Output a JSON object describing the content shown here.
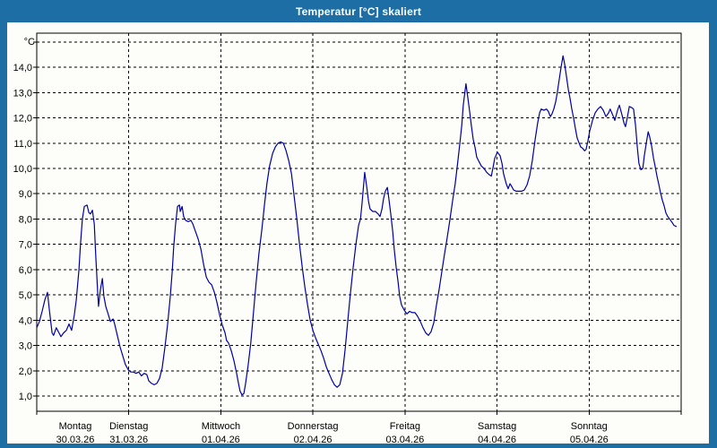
{
  "window": {
    "title": "Temperatur [°C] skaliert",
    "frame_color": "#1C6EA5",
    "titlebar_text_color": "#FFFFFF",
    "panel_background": "#FDFEF9"
  },
  "chart_data": {
    "type": "line",
    "title": "Temperatur [°C] skaliert",
    "unit_label": "°C",
    "grid": {
      "style": "dashed",
      "color": "#000000",
      "horizontal": true,
      "vertical": true
    },
    "legend": "none",
    "x_axis": {
      "kind": "time",
      "range_hours": [
        0,
        168
      ],
      "day_ticks": [
        {
          "name": "Montag",
          "date": "30.03.26",
          "start_hour": 0
        },
        {
          "name": "Dienstag",
          "date": "31.03.26",
          "start_hour": 24
        },
        {
          "name": "Mittwoch",
          "date": "01.04.26",
          "start_hour": 48
        },
        {
          "name": "Donnerstag",
          "date": "02.04.26",
          "start_hour": 72
        },
        {
          "name": "Freitag",
          "date": "03.04.26",
          "start_hour": 96
        },
        {
          "name": "Samstag",
          "date": "04.04.26",
          "start_hour": 120
        },
        {
          "name": "Sonntag",
          "date": "05.04.26",
          "start_hour": 144
        }
      ]
    },
    "y_axis": {
      "range": [
        0.4,
        15.35
      ],
      "gridline_values": [
        1,
        2,
        3,
        4,
        5,
        6,
        7,
        8,
        9,
        10,
        11,
        12,
        13,
        14,
        15
      ],
      "tick_labels": [
        {
          "value": 1,
          "label": "1,0"
        },
        {
          "value": 2,
          "label": "2,0"
        },
        {
          "value": 3,
          "label": "3,0"
        },
        {
          "value": 4,
          "label": "4,0"
        },
        {
          "value": 5,
          "label": "5,0"
        },
        {
          "value": 6,
          "label": "6,0"
        },
        {
          "value": 7,
          "label": "7,0"
        },
        {
          "value": 8,
          "label": "8,0"
        },
        {
          "value": 9,
          "label": "9,0"
        },
        {
          "value": 10,
          "label": "10,0"
        },
        {
          "value": 11,
          "label": "11,0"
        },
        {
          "value": 12,
          "label": "12,0"
        },
        {
          "value": 13,
          "label": "13,0"
        },
        {
          "value": 14,
          "label": "14,0"
        }
      ]
    },
    "series": [
      {
        "name": "Temperatur",
        "unit": "°C",
        "color": "#0000A0",
        "points": [
          [
            0,
            3.7
          ],
          [
            0.7,
            3.95
          ],
          [
            1.4,
            4.35
          ],
          [
            2.1,
            4.8
          ],
          [
            2.8,
            5.1
          ],
          [
            3.3,
            4.4
          ],
          [
            4,
            3.5
          ],
          [
            4.4,
            3.4
          ],
          [
            5.1,
            3.7
          ],
          [
            5.8,
            3.5
          ],
          [
            6.3,
            3.35
          ],
          [
            7,
            3.5
          ],
          [
            7.7,
            3.6
          ],
          [
            8.4,
            3.85
          ],
          [
            9.1,
            3.6
          ],
          [
            9.8,
            4.2
          ],
          [
            10.3,
            4.8
          ],
          [
            11,
            6
          ],
          [
            11.4,
            7
          ],
          [
            11.9,
            8
          ],
          [
            12.4,
            8.5
          ],
          [
            13.1,
            8.55
          ],
          [
            13.6,
            8.25
          ],
          [
            14,
            8.2
          ],
          [
            14.5,
            8.35
          ],
          [
            15,
            7.8
          ],
          [
            15.4,
            6.5
          ],
          [
            15.9,
            5.1
          ],
          [
            16.1,
            4.55
          ],
          [
            16.6,
            5.2
          ],
          [
            17.1,
            5.65
          ],
          [
            17.5,
            4.95
          ],
          [
            18,
            4.55
          ],
          [
            18.5,
            4.3
          ],
          [
            19.2,
            3.95
          ],
          [
            19.9,
            4.05
          ],
          [
            20.3,
            3.85
          ],
          [
            21,
            3.4
          ],
          [
            21.7,
            2.95
          ],
          [
            22.4,
            2.6
          ],
          [
            23.1,
            2.25
          ],
          [
            23.8,
            2.05
          ],
          [
            24.5,
            1.95
          ],
          [
            25.2,
            1.95
          ],
          [
            25.9,
            1.9
          ],
          [
            26.6,
            1.95
          ],
          [
            27.3,
            1.8
          ],
          [
            28,
            1.9
          ],
          [
            28.7,
            1.85
          ],
          [
            29.2,
            1.6
          ],
          [
            29.9,
            1.5
          ],
          [
            30.6,
            1.45
          ],
          [
            31.3,
            1.5
          ],
          [
            32,
            1.7
          ],
          [
            32.7,
            2.1
          ],
          [
            33.4,
            2.9
          ],
          [
            34.1,
            3.8
          ],
          [
            34.8,
            4.9
          ],
          [
            35.3,
            5.9
          ],
          [
            35.7,
            6.9
          ],
          [
            36.2,
            7.8
          ],
          [
            36.7,
            8.5
          ],
          [
            37.2,
            8.55
          ],
          [
            37.4,
            8.3
          ],
          [
            37.9,
            8.5
          ],
          [
            38.3,
            8.1
          ],
          [
            38.8,
            7.95
          ],
          [
            39.5,
            7.9
          ],
          [
            40.2,
            7.95
          ],
          [
            40.7,
            7.8
          ],
          [
            41.4,
            7.5
          ],
          [
            42.1,
            7.2
          ],
          [
            42.8,
            6.8
          ],
          [
            43.5,
            6.2
          ],
          [
            44.2,
            5.7
          ],
          [
            44.9,
            5.5
          ],
          [
            45.6,
            5.4
          ],
          [
            46.3,
            5.1
          ],
          [
            47,
            4.7
          ],
          [
            47.7,
            4.2
          ],
          [
            48.4,
            3.8
          ],
          [
            49.1,
            3.5
          ],
          [
            49.5,
            3.2
          ],
          [
            50,
            3.1
          ],
          [
            50.7,
            2.8
          ],
          [
            51.4,
            2.4
          ],
          [
            52.1,
            1.9
          ],
          [
            52.6,
            1.5
          ],
          [
            53,
            1.2
          ],
          [
            53.5,
            1.05
          ],
          [
            54,
            1.1
          ],
          [
            54.4,
            1.45
          ],
          [
            55.1,
            2.2
          ],
          [
            55.8,
            3.1
          ],
          [
            56.5,
            4.3
          ],
          [
            57.2,
            5.5
          ],
          [
            57.9,
            6.6
          ],
          [
            58.7,
            7.6
          ],
          [
            59.4,
            8.6
          ],
          [
            60,
            9.4
          ],
          [
            60.7,
            10.1
          ],
          [
            61.5,
            10.6
          ],
          [
            62.2,
            10.85
          ],
          [
            62.9,
            11
          ],
          [
            63.6,
            11.05
          ],
          [
            64.3,
            11
          ],
          [
            65,
            10.7
          ],
          [
            65.7,
            10.3
          ],
          [
            66.4,
            9.8
          ],
          [
            67.1,
            8.9
          ],
          [
            67.8,
            8
          ],
          [
            68.5,
            7
          ],
          [
            69.2,
            6.1
          ],
          [
            69.9,
            5.3
          ],
          [
            70.6,
            4.6
          ],
          [
            71.3,
            4
          ],
          [
            72,
            3.6
          ],
          [
            72.7,
            3.3
          ],
          [
            73.4,
            3.05
          ],
          [
            74.1,
            2.8
          ],
          [
            74.8,
            2.5
          ],
          [
            75.5,
            2.15
          ],
          [
            76.2,
            1.9
          ],
          [
            76.9,
            1.65
          ],
          [
            77.6,
            1.45
          ],
          [
            78.3,
            1.35
          ],
          [
            79,
            1.45
          ],
          [
            79.7,
            1.9
          ],
          [
            80.4,
            2.85
          ],
          [
            81.1,
            4
          ],
          [
            81.8,
            5.1
          ],
          [
            82.5,
            6.1
          ],
          [
            83.2,
            7
          ],
          [
            83.9,
            7.75
          ],
          [
            84.4,
            8
          ],
          [
            84.8,
            8.6
          ],
          [
            85.3,
            9.5
          ],
          [
            85.5,
            9.85
          ],
          [
            86,
            9.3
          ],
          [
            86.5,
            8.7
          ],
          [
            86.9,
            8.4
          ],
          [
            87.6,
            8.3
          ],
          [
            88.3,
            8.3
          ],
          [
            89,
            8.2
          ],
          [
            89.5,
            8.1
          ],
          [
            90,
            8.4
          ],
          [
            90.4,
            8.8
          ],
          [
            90.9,
            9.1
          ],
          [
            91.4,
            9.25
          ],
          [
            91.8,
            8.8
          ],
          [
            92.3,
            8.2
          ],
          [
            92.8,
            7.5
          ],
          [
            93.2,
            6.8
          ],
          [
            93.7,
            6.1
          ],
          [
            94.2,
            5.5
          ],
          [
            94.6,
            4.95
          ],
          [
            95.1,
            4.6
          ],
          [
            95.8,
            4.4
          ],
          [
            96.5,
            4.25
          ],
          [
            97.2,
            4.35
          ],
          [
            97.9,
            4.3
          ],
          [
            98.6,
            4.3
          ],
          [
            99.3,
            4.15
          ],
          [
            100,
            3.95
          ],
          [
            100.7,
            3.7
          ],
          [
            101.4,
            3.5
          ],
          [
            102.1,
            3.4
          ],
          [
            102.8,
            3.55
          ],
          [
            103.5,
            3.9
          ],
          [
            104.2,
            4.6
          ],
          [
            104.9,
            5.2
          ],
          [
            105.6,
            5.9
          ],
          [
            106.3,
            6.6
          ],
          [
            107,
            7.25
          ],
          [
            107.7,
            7.95
          ],
          [
            108.4,
            8.7
          ],
          [
            109.1,
            9.4
          ],
          [
            109.8,
            10.3
          ],
          [
            110.3,
            11
          ],
          [
            110.8,
            11.7
          ],
          [
            111.2,
            12.5
          ],
          [
            111.7,
            13.1
          ],
          [
            111.9,
            13.35
          ],
          [
            112.4,
            12.8
          ],
          [
            112.9,
            12.2
          ],
          [
            113.3,
            11.7
          ],
          [
            113.8,
            11.15
          ],
          [
            114.3,
            10.8
          ],
          [
            114.7,
            10.45
          ],
          [
            115.2,
            10.3
          ],
          [
            115.9,
            10.1
          ],
          [
            116.6,
            10
          ],
          [
            117.3,
            9.85
          ],
          [
            118,
            9.75
          ],
          [
            118.5,
            9.7
          ],
          [
            118.9,
            10
          ],
          [
            119.4,
            10.4
          ],
          [
            120.1,
            10.65
          ],
          [
            120.8,
            10.5
          ],
          [
            121.3,
            10.2
          ],
          [
            121.7,
            9.8
          ],
          [
            122.4,
            9.4
          ],
          [
            122.9,
            9.2
          ],
          [
            123.4,
            9.4
          ],
          [
            123.8,
            9.3
          ],
          [
            124.3,
            9.15
          ],
          [
            125,
            9.1
          ],
          [
            125.7,
            9.1
          ],
          [
            126.4,
            9.1
          ],
          [
            127.1,
            9.15
          ],
          [
            127.8,
            9.35
          ],
          [
            128.5,
            9.7
          ],
          [
            129.2,
            10.3
          ],
          [
            129.9,
            11.1
          ],
          [
            130.6,
            11.8
          ],
          [
            131.1,
            12.2
          ],
          [
            131.5,
            12.35
          ],
          [
            132.2,
            12.3
          ],
          [
            132.9,
            12.35
          ],
          [
            133.4,
            12.25
          ],
          [
            133.9,
            12.05
          ],
          [
            134.3,
            12.15
          ],
          [
            134.8,
            12.35
          ],
          [
            135.3,
            12.65
          ],
          [
            135.7,
            13
          ],
          [
            136.2,
            13.5
          ],
          [
            136.7,
            14
          ],
          [
            137.2,
            14.45
          ],
          [
            137.6,
            14.15
          ],
          [
            138.1,
            13.65
          ],
          [
            138.6,
            13.1
          ],
          [
            139,
            12.8
          ],
          [
            139.5,
            12.35
          ],
          [
            140,
            11.95
          ],
          [
            140.4,
            11.6
          ],
          [
            140.9,
            11.2
          ],
          [
            141.4,
            11
          ],
          [
            141.8,
            10.85
          ],
          [
            142.3,
            10.8
          ],
          [
            142.8,
            10.7
          ],
          [
            143.2,
            10.75
          ],
          [
            143.7,
            11.1
          ],
          [
            144.2,
            11.5
          ],
          [
            144.9,
            11.9
          ],
          [
            145.6,
            12.2
          ],
          [
            146.3,
            12.35
          ],
          [
            147,
            12.45
          ],
          [
            147.7,
            12.3
          ],
          [
            148.4,
            12.05
          ],
          [
            149.1,
            12.2
          ],
          [
            149.5,
            12.35
          ],
          [
            150.2,
            12.1
          ],
          [
            150.7,
            11.9
          ],
          [
            151.4,
            12.3
          ],
          [
            151.9,
            12.5
          ],
          [
            152.6,
            12.1
          ],
          [
            153.1,
            11.8
          ],
          [
            153.5,
            11.65
          ],
          [
            154,
            12.05
          ],
          [
            154.5,
            12.45
          ],
          [
            155.2,
            12.4
          ],
          [
            155.6,
            12.35
          ],
          [
            156.1,
            11.7
          ],
          [
            156.6,
            10.8
          ],
          [
            157,
            10.2
          ],
          [
            157.5,
            9.95
          ],
          [
            158,
            10
          ],
          [
            158.4,
            10.5
          ],
          [
            158.9,
            11
          ],
          [
            159.4,
            11.45
          ],
          [
            159.8,
            11.25
          ],
          [
            160.3,
            10.9
          ],
          [
            160.8,
            10.4
          ],
          [
            161.2,
            10.1
          ],
          [
            161.7,
            9.7
          ],
          [
            162.2,
            9.35
          ],
          [
            162.6,
            9.05
          ],
          [
            163.1,
            8.75
          ],
          [
            163.6,
            8.5
          ],
          [
            164,
            8.25
          ],
          [
            164.5,
            8.1
          ],
          [
            165,
            8
          ],
          [
            165.7,
            7.85
          ],
          [
            166.1,
            7.75
          ],
          [
            166.8,
            7.7
          ]
        ]
      }
    ]
  }
}
